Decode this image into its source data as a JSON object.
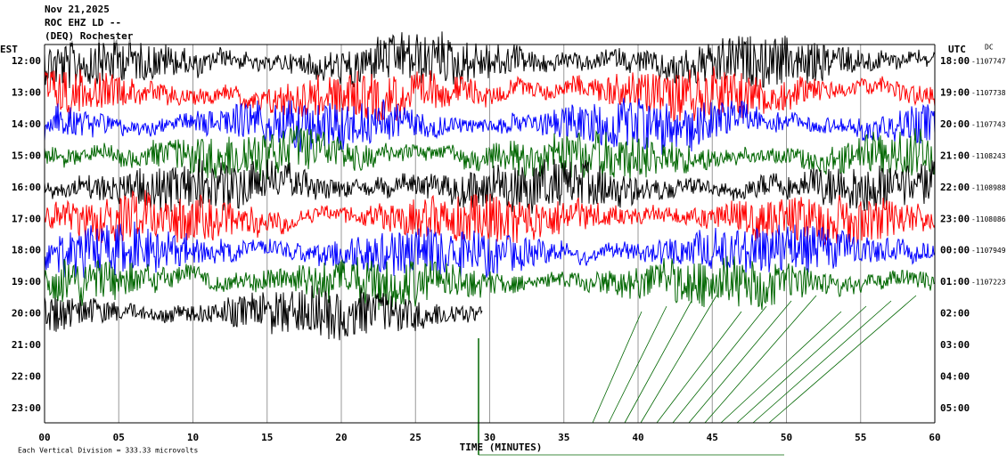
{
  "header": {
    "lines": [
      "Nov 21,2025",
      "ROC EHZ LD --",
      "(DEQ) Rochester"
    ]
  },
  "left_axis": {
    "title": "EST",
    "labels": [
      "12:00",
      "13:00",
      "14:00",
      "15:00",
      "16:00",
      "17:00",
      "18:00",
      "19:00",
      "20:00",
      "21:00",
      "22:00",
      "23:00"
    ]
  },
  "right_axis": {
    "title": "UTC",
    "dc_title": "DC",
    "labels": [
      "18:00",
      "19:00",
      "20:00",
      "21:00",
      "22:00",
      "23:00",
      "00:00",
      "01:00",
      "02:00",
      "03:00",
      "04:00",
      "05:00"
    ],
    "dc_values": [
      "-1107747",
      "-1107738",
      "-1107743",
      "-1108243",
      "-1108988",
      "-1108086",
      "-1107949",
      "-1107223"
    ]
  },
  "x_axis": {
    "labels": [
      "00",
      "05",
      "10",
      "15",
      "20",
      "25",
      "30",
      "35",
      "40",
      "45",
      "50",
      "55",
      "60"
    ],
    "title": "TIME (MINUTES)"
  },
  "footer": {
    "note": "Each Vertical Division =  333.33 microvolts"
  }
}
